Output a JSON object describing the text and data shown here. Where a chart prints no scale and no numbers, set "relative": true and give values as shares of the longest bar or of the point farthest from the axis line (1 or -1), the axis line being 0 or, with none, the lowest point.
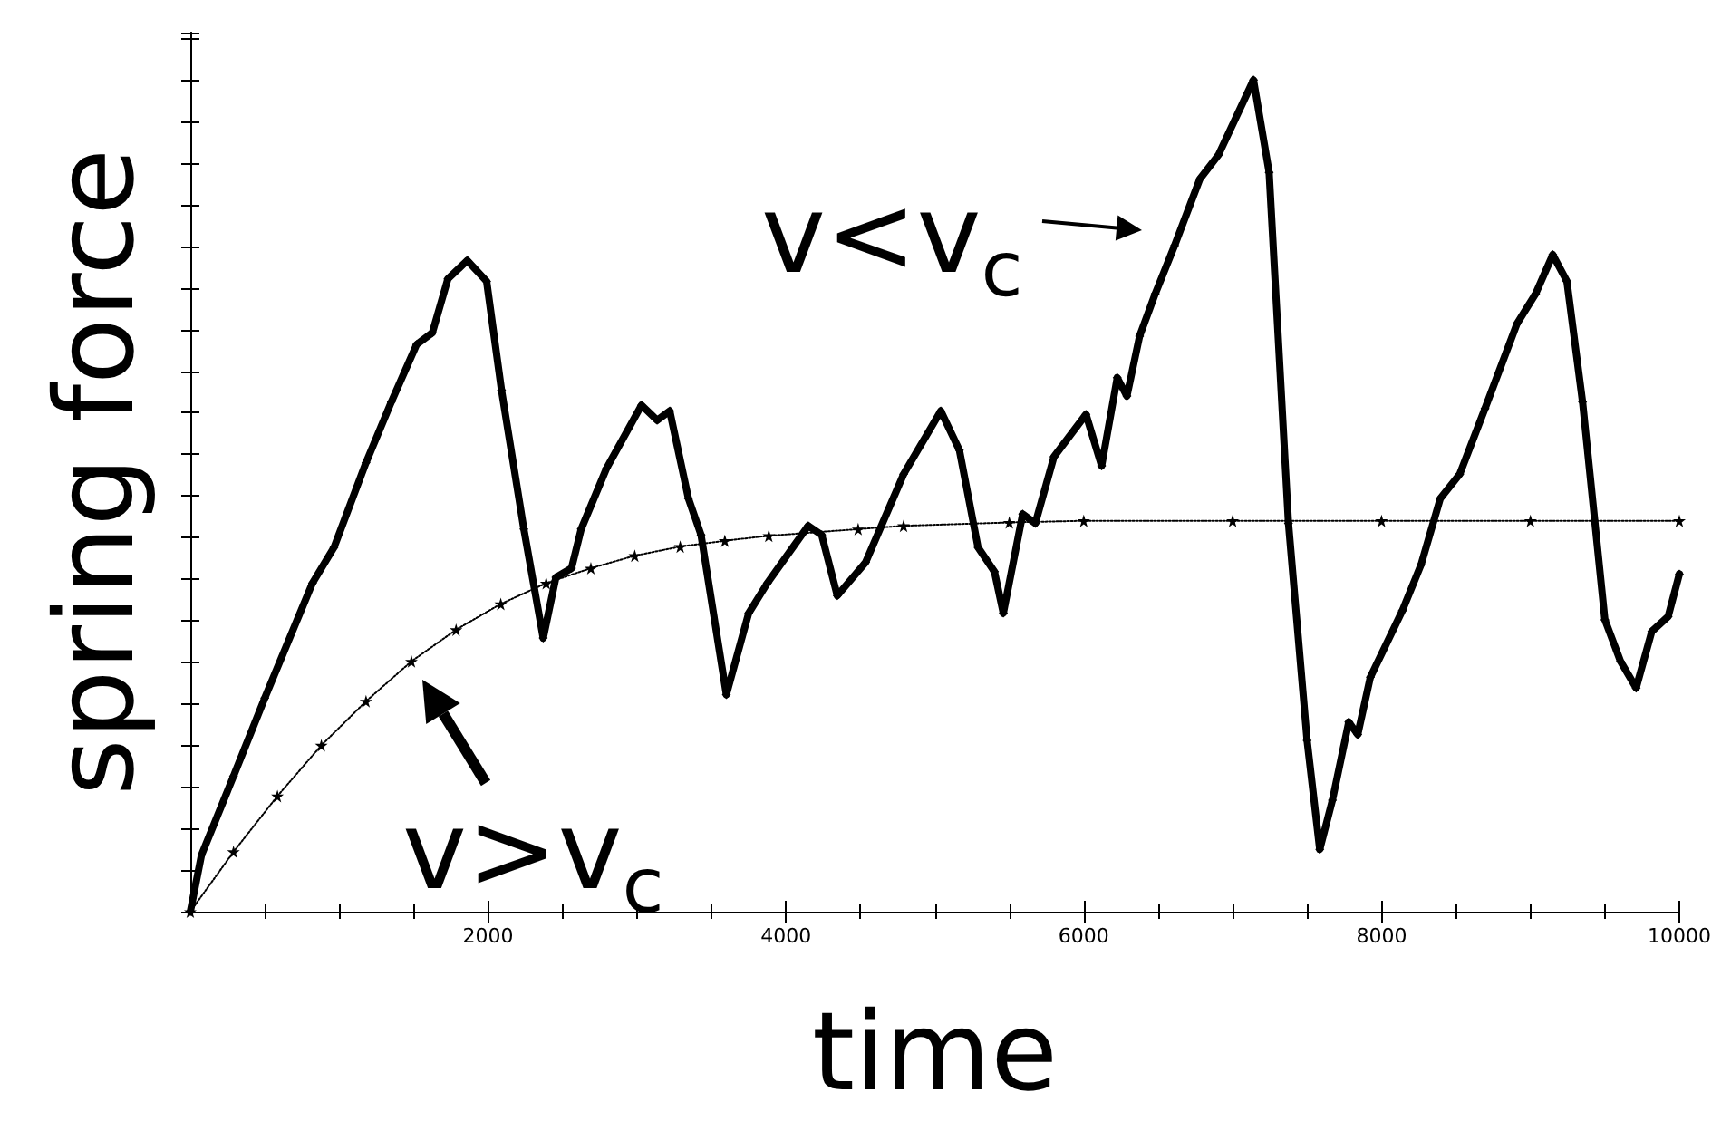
{
  "chart_data": {
    "type": "line",
    "relative": true,
    "xlabel": "time",
    "ylabel": "spring force",
    "xlim": [
      0,
      10000
    ],
    "xticks": [
      2000,
      4000,
      6000,
      8000,
      10000
    ],
    "annotations": [
      "v<v$_{c}$",
      "v>v$_{c}$"
    ],
    "series": [
      {
        "color": "#000000",
        "marker": "diamond",
        "line_style": "solid",
        "x": [
          0,
          75,
          290,
          500,
          820,
          965,
          1180,
          1350,
          1520,
          1625,
          1730,
          1860,
          1990,
          2090,
          2240,
          2370,
          2455,
          2560,
          2625,
          2795,
          3030,
          3135,
          3220,
          3345,
          3430,
          3600,
          3750,
          3875,
          4150,
          4240,
          4345,
          4535,
          4790,
          5040,
          5165,
          5290,
          5400,
          5460,
          5590,
          5675,
          5800,
          6015,
          6120,
          6225,
          6290,
          6375,
          6480,
          6610,
          6780,
          6905,
          7140,
          7245,
          7375,
          7500,
          7585,
          7670,
          7780,
          7840,
          7925,
          8140,
          8265,
          8395,
          8525,
          8695,
          8910,
          9035,
          9150,
          9245,
          9350,
          9500,
          9605,
          9710,
          9815,
          9925,
          10000
        ],
        "values": [
          0,
          0.068,
          0.163,
          0.257,
          0.395,
          0.438,
          0.54,
          0.613,
          0.682,
          0.696,
          0.761,
          0.783,
          0.758,
          0.627,
          0.46,
          0.329,
          0.402,
          0.413,
          0.46,
          0.533,
          0.609,
          0.591,
          0.602,
          0.497,
          0.453,
          0.261,
          0.359,
          0.395,
          0.464,
          0.453,
          0.38,
          0.42,
          0.526,
          0.602,
          0.555,
          0.438,
          0.409,
          0.359,
          0.478,
          0.467,
          0.547,
          0.598,
          0.536,
          0.642,
          0.62,
          0.692,
          0.743,
          0.801,
          0.881,
          0.91,
          1,
          0.889,
          0.467,
          0.206,
          0.075,
          0.134,
          0.228,
          0.213,
          0.282,
          0.362,
          0.417,
          0.497,
          0.526,
          0.605,
          0.707,
          0.743,
          0.79,
          0.758,
          0.613,
          0.351,
          0.301,
          0.269,
          0.337,
          0.355,
          0.406
        ]
      },
      {
        "color": "#000000",
        "marker": "star",
        "line_style": "dotted",
        "x": [
          0,
          290,
          585,
          880,
          1180,
          1485,
          1785,
          2085,
          2390,
          2690,
          2985,
          3290,
          3590,
          3885,
          4485,
          4790,
          5500,
          6000,
          7000,
          8000,
          9000,
          10000
        ],
        "values": [
          0,
          0.072,
          0.139,
          0.2,
          0.253,
          0.301,
          0.339,
          0.37,
          0.395,
          0.413,
          0.428,
          0.439,
          0.446,
          0.452,
          0.46,
          0.464,
          0.468,
          0.47,
          0.47,
          0.47,
          0.47,
          0.47
        ]
      }
    ]
  }
}
